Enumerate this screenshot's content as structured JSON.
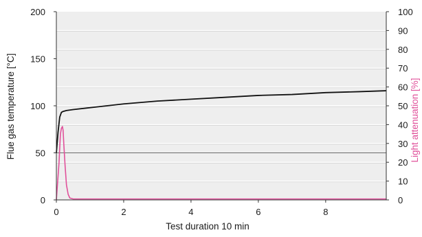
{
  "chart_data": {
    "type": "line",
    "xlabel": "Test duration 10 min",
    "ylabel": "Flue gas temperature [°C]",
    "y2label": "Light attenuation [%]",
    "xlim": [
      0,
      9.8
    ],
    "ylim": [
      0,
      200
    ],
    "y2lim": [
      0,
      100
    ],
    "xticks": [
      0,
      2,
      4,
      6,
      8
    ],
    "yticks": [
      0,
      50,
      100,
      150,
      200
    ],
    "y2ticks": [
      0,
      10,
      20,
      30,
      40,
      50,
      60,
      70,
      80,
      90,
      100
    ],
    "grid": true,
    "plot_background": "#eeeeee",
    "series": [
      {
        "axis": "left",
        "color": "#111111",
        "x": [
          0,
          0.05,
          0.1,
          0.15,
          0.2,
          0.3,
          0.5,
          1,
          1.5,
          2,
          3,
          4,
          5,
          6,
          7,
          8,
          9,
          9.8
        ],
        "y": [
          50,
          72,
          88,
          93,
          94,
          95,
          96,
          98,
          100,
          102,
          105,
          107,
          109,
          111,
          112,
          114,
          115,
          116
        ]
      },
      {
        "axis": "right",
        "color": "#e0509a",
        "x": [
          0,
          0.08,
          0.12,
          0.15,
          0.18,
          0.2,
          0.22,
          0.26,
          0.3,
          0.35,
          0.4,
          0.5,
          1,
          3,
          6,
          9.8
        ],
        "y": [
          0,
          20,
          35,
          38,
          39,
          37,
          30,
          18,
          8,
          3,
          1,
          0.5,
          0.5,
          0.5,
          0.5,
          0.5
        ]
      }
    ]
  }
}
